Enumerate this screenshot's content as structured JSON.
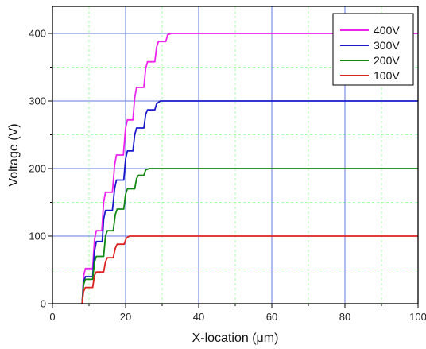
{
  "chart_data": {
    "type": "line",
    "title": "",
    "xlabel": "X-location (μm)",
    "ylabel": "Voltage (V)",
    "xlim": [
      0,
      100
    ],
    "ylim": [
      0,
      440
    ],
    "x_ticks": [
      0,
      20,
      40,
      60,
      80,
      100
    ],
    "y_ticks": [
      0,
      100,
      200,
      300,
      400
    ],
    "major_grid_color": "#6677dd",
    "minor_grid_color": "#aaffaa",
    "legend_position": "top-right",
    "series": [
      {
        "name": "400V",
        "color": "#ee22ee",
        "points": [
          [
            7.9,
            0
          ],
          [
            8.1,
            0
          ],
          [
            8.5,
            40
          ],
          [
            9,
            52
          ],
          [
            11,
            52
          ],
          [
            11.5,
            95
          ],
          [
            12,
            108
          ],
          [
            13.5,
            108
          ],
          [
            14,
            150
          ],
          [
            14.5,
            165
          ],
          [
            16.4,
            165
          ],
          [
            17,
            205
          ],
          [
            17.5,
            220
          ],
          [
            19.4,
            220
          ],
          [
            20,
            260
          ],
          [
            20.5,
            272
          ],
          [
            22,
            272
          ],
          [
            22.5,
            305
          ],
          [
            23,
            320
          ],
          [
            25,
            320
          ],
          [
            25.5,
            348
          ],
          [
            26,
            358
          ],
          [
            28,
            358
          ],
          [
            28.5,
            380
          ],
          [
            29,
            388
          ],
          [
            31,
            388
          ],
          [
            31.5,
            398
          ],
          [
            32.5,
            400
          ],
          [
            100,
            400
          ]
        ]
      },
      {
        "name": "300V",
        "color": "#1a1acc",
        "points": [
          [
            7.9,
            0
          ],
          [
            8.1,
            0
          ],
          [
            8.5,
            32
          ],
          [
            9,
            40
          ],
          [
            11,
            40
          ],
          [
            11.5,
            78
          ],
          [
            12,
            92
          ],
          [
            13.6,
            92
          ],
          [
            14,
            125
          ],
          [
            14.5,
            138
          ],
          [
            16.4,
            138
          ],
          [
            17,
            170
          ],
          [
            17.5,
            183
          ],
          [
            19.5,
            183
          ],
          [
            20,
            214
          ],
          [
            20.5,
            226
          ],
          [
            22,
            226
          ],
          [
            22.5,
            250
          ],
          [
            23,
            260
          ],
          [
            25,
            260
          ],
          [
            25.5,
            280
          ],
          [
            26,
            287
          ],
          [
            28,
            287
          ],
          [
            28.5,
            296
          ],
          [
            29.5,
            300
          ],
          [
            100,
            300
          ]
        ]
      },
      {
        "name": "200V",
        "color": "#118811",
        "points": [
          [
            7.9,
            0
          ],
          [
            8.1,
            0
          ],
          [
            8.5,
            28
          ],
          [
            9,
            36
          ],
          [
            11,
            36
          ],
          [
            11.5,
            62
          ],
          [
            12,
            70
          ],
          [
            14,
            70
          ],
          [
            14.5,
            100
          ],
          [
            15,
            108
          ],
          [
            16.6,
            108
          ],
          [
            17.2,
            132
          ],
          [
            17.7,
            140
          ],
          [
            19.5,
            140
          ],
          [
            20,
            162
          ],
          [
            20.5,
            170
          ],
          [
            22.5,
            170
          ],
          [
            23,
            185
          ],
          [
            23.5,
            190
          ],
          [
            25,
            190
          ],
          [
            25.5,
            198
          ],
          [
            26.5,
            200
          ],
          [
            100,
            200
          ]
        ]
      },
      {
        "name": "100V",
        "color": "#dd2222",
        "points": [
          [
            7.9,
            0
          ],
          [
            8.1,
            0
          ],
          [
            8.5,
            18
          ],
          [
            9,
            24
          ],
          [
            11,
            24
          ],
          [
            11.5,
            42
          ],
          [
            12,
            47
          ],
          [
            14,
            47
          ],
          [
            14.5,
            62
          ],
          [
            15,
            68
          ],
          [
            16.6,
            68
          ],
          [
            17.2,
            82
          ],
          [
            17.7,
            88
          ],
          [
            19.6,
            88
          ],
          [
            20.2,
            97
          ],
          [
            21,
            100
          ],
          [
            100,
            100
          ]
        ]
      }
    ]
  }
}
